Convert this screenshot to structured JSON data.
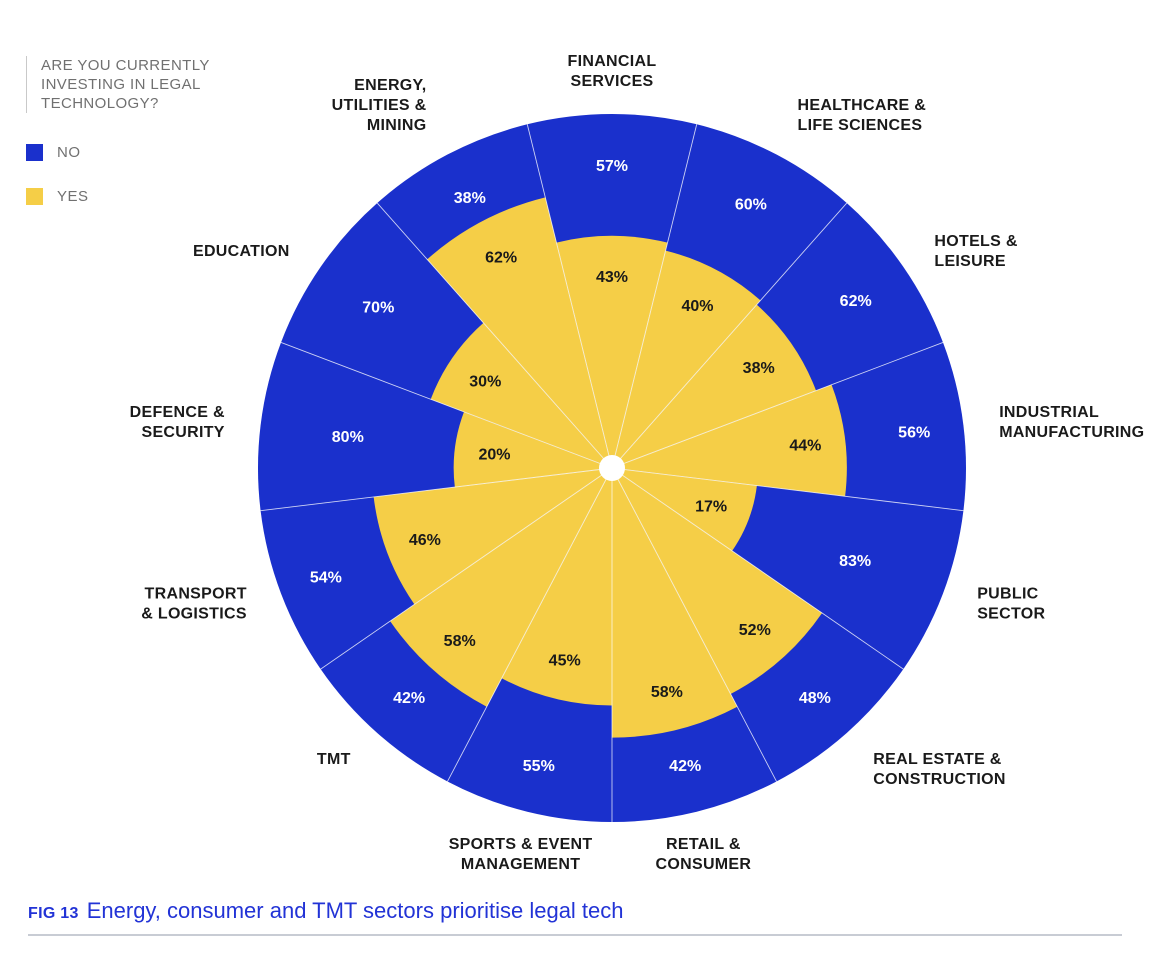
{
  "legend": {
    "question": "ARE YOU CURRENTLY INVESTING IN LEGAL TECHNOLOGY?",
    "no_label": "NO",
    "yes_label": "YES",
    "no_color": "#1a30cc",
    "yes_color": "#f5ce47"
  },
  "caption": {
    "fig_number": "FIG 13",
    "title": "Energy, consumer and TMT sectors prioritise legal tech"
  },
  "chart_data": {
    "type": "polar-area",
    "series": [
      {
        "name": "NO",
        "color": "#1a30cc"
      },
      {
        "name": "YES",
        "color": "#f5ce47"
      }
    ],
    "sectors": [
      {
        "label": [
          "FINANCIAL",
          "SERVICES"
        ],
        "yes": 43,
        "no": 57
      },
      {
        "label": [
          "HEALTHCARE &",
          "LIFE SCIENCES"
        ],
        "yes": 40,
        "no": 60
      },
      {
        "label": [
          "HOTELS &",
          "LEISURE"
        ],
        "yes": 38,
        "no": 62
      },
      {
        "label": [
          "INDUSTRIAL",
          "MANUFACTURING"
        ],
        "yes": 44,
        "no": 56
      },
      {
        "label": [
          "PUBLIC",
          "SECTOR"
        ],
        "yes": 17,
        "no": 83
      },
      {
        "label": [
          "REAL ESTATE &",
          "CONSTRUCTION"
        ],
        "yes": 52,
        "no": 48
      },
      {
        "label": [
          "RETAIL &",
          "CONSUMER"
        ],
        "yes": 58,
        "no": 42
      },
      {
        "label": [
          "SPORTS & EVENT",
          "MANAGEMENT"
        ],
        "yes": 45,
        "no": 55
      },
      {
        "label": [
          "TMT"
        ],
        "yes": 58,
        "no": 42
      },
      {
        "label": [
          "TRANSPORT",
          "& LOGISTICS"
        ],
        "yes": 46,
        "no": 54
      },
      {
        "label": [
          "DEFENCE &",
          "SECURITY"
        ],
        "yes": 20,
        "no": 80
      },
      {
        "label": [
          "EDUCATION"
        ],
        "yes": 30,
        "no": 70
      },
      {
        "label": [
          "ENERGY,",
          "UTILITIES &",
          "MINING"
        ],
        "yes": 62,
        "no": 38
      }
    ]
  }
}
